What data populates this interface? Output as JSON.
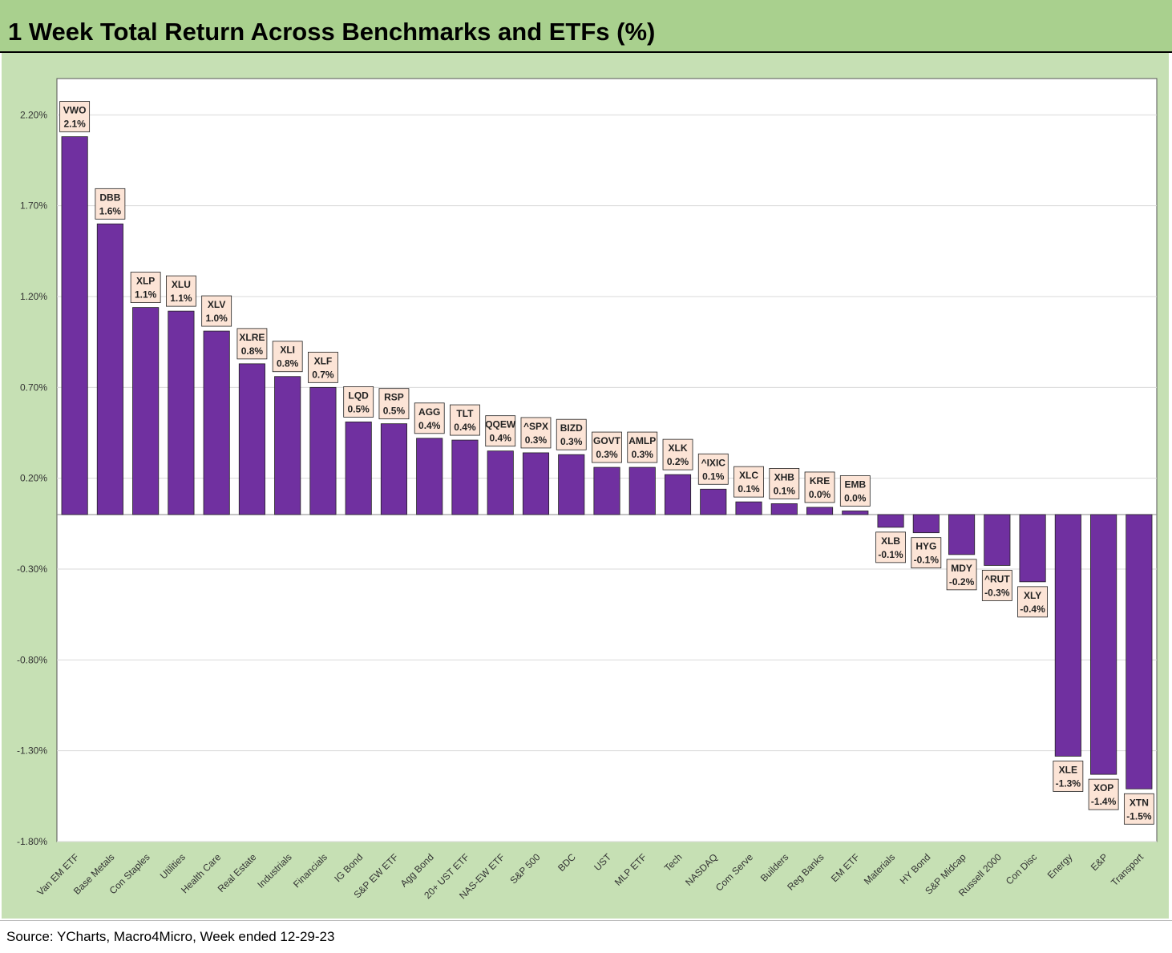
{
  "title": "1 Week Total Return Across Benchmarks and ETFs (%)",
  "source": "Source: YCharts, Macro4Micro, Week ended 12-29-23",
  "colors": {
    "header_bg": "#a9d08e",
    "panel_bg": "#c6e0b4",
    "bar": "#7030a0",
    "label_box": "#fce4d6"
  },
  "chart_data": {
    "type": "bar",
    "title": "1 Week Total Return Across Benchmarks and ETFs (%)",
    "xlabel": "",
    "ylabel": "",
    "ylim": [
      -1.8,
      2.4
    ],
    "yticks": [
      2.2,
      1.7,
      1.2,
      0.7,
      0.2,
      -0.3,
      -0.8,
      -1.3,
      -1.8
    ],
    "ytick_labels": [
      "2.20%",
      "1.70%",
      "1.20%",
      "0.70%",
      "0.20%",
      "-0.30%",
      "-0.80%",
      "-1.30%",
      "-1.80%"
    ],
    "grid": true,
    "categories": [
      "Van EM ETF",
      "Base Metals",
      "Con Staples",
      "Utilities",
      "Health Care",
      "Real Estate",
      "Industrials",
      "Financials",
      "IG Bond",
      "S&P EW ETF",
      "Agg Bond",
      "20+ UST ETF",
      "NAS-EW ETF",
      "S&P 500",
      "BDC",
      "UST",
      "MLP ETF",
      "Tech",
      "NASDAQ",
      "Com Serve",
      "Builders",
      "Reg Banks",
      "EM ETF",
      "Materials",
      "HY Bond",
      "S&P Midcap",
      "Russell 2000",
      "Con Disc",
      "Energy",
      "E&P",
      "Transport"
    ],
    "tickers": [
      "VWO",
      "DBB",
      "XLP",
      "XLU",
      "XLV",
      "XLRE",
      "XLI",
      "XLF",
      "LQD",
      "RSP",
      "AGG",
      "TLT",
      "QQEW",
      "^SPX",
      "BIZD",
      "GOVT",
      "AMLP",
      "XLK",
      "^IXIC",
      "XLC",
      "XHB",
      "KRE",
      "EMB",
      "XLB",
      "HYG",
      "MDY",
      "^RUT",
      "XLY",
      "XLE",
      "XOP",
      "XTN"
    ],
    "value_labels": [
      "2.1%",
      "1.6%",
      "1.1%",
      "1.1%",
      "1.0%",
      "0.8%",
      "0.8%",
      "0.7%",
      "0.5%",
      "0.5%",
      "0.4%",
      "0.4%",
      "0.4%",
      "0.3%",
      "0.3%",
      "0.3%",
      "0.3%",
      "0.2%",
      "0.1%",
      "0.1%",
      "0.1%",
      "0.0%",
      "0.0%",
      "-0.1%",
      "-0.1%",
      "-0.2%",
      "-0.3%",
      "-0.4%",
      "-1.3%",
      "-1.4%",
      "-1.5%"
    ],
    "values": [
      2.08,
      1.6,
      1.14,
      1.12,
      1.01,
      0.83,
      0.76,
      0.7,
      0.51,
      0.5,
      0.42,
      0.41,
      0.35,
      0.34,
      0.33,
      0.26,
      0.26,
      0.22,
      0.14,
      0.07,
      0.06,
      0.04,
      0.02,
      -0.07,
      -0.1,
      -0.22,
      -0.28,
      -0.37,
      -1.33,
      -1.43,
      -1.51
    ],
    "series": [
      {
        "values": [
          2.08,
          1.6,
          1.14,
          1.12,
          1.01,
          0.83,
          0.76,
          0.7,
          0.51,
          0.5,
          0.42,
          0.41,
          0.35,
          0.34,
          0.33,
          0.26,
          0.26,
          0.22,
          0.14,
          0.07,
          0.06,
          0.04,
          0.02,
          -0.07,
          -0.1,
          -0.22,
          -0.28,
          -0.37,
          -1.33,
          -1.43,
          -1.51
        ]
      }
    ]
  }
}
